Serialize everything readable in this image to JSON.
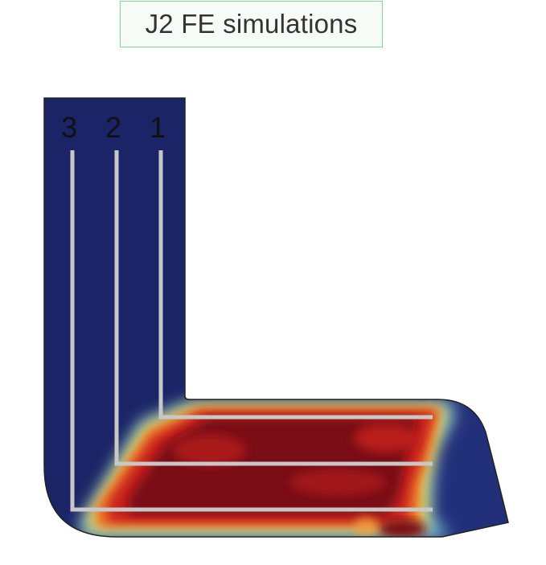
{
  "title": "J2 FE simulations",
  "paths": [
    {
      "id": "3",
      "label": "3"
    },
    {
      "id": "2",
      "label": "2"
    },
    {
      "id": "1",
      "label": "1"
    }
  ],
  "colors": {
    "background_field": "#1b2466",
    "high_field": "#7a0a17",
    "mid_field": "#c8231c",
    "path_line": "#c8c8c8",
    "outline": "#222222",
    "title_border": "#7fdc8f"
  }
}
